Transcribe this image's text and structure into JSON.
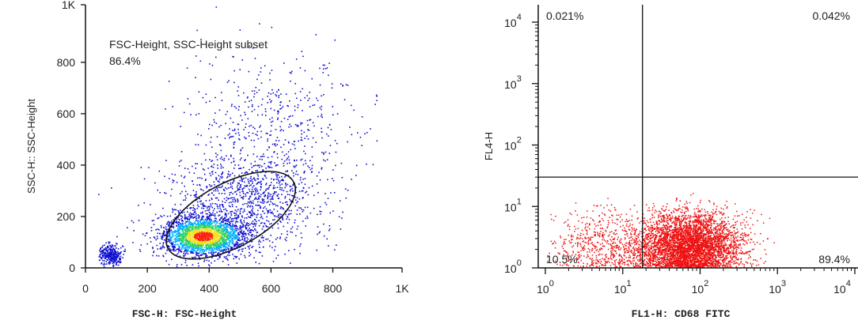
{
  "chart_data": [
    {
      "type": "scatter",
      "xlabel": "FSC-H: FSC-Height",
      "ylabel": "SSC-H:: SSC-Height",
      "xlim": [
        0,
        1024
      ],
      "ylim": [
        0,
        1024
      ],
      "xticks": [
        {
          "value": 0,
          "label": "0"
        },
        {
          "value": 200,
          "label": "200"
        },
        {
          "value": 400,
          "label": "400"
        },
        {
          "value": 600,
          "label": "600"
        },
        {
          "value": 800,
          "label": "800"
        },
        {
          "value": 1024,
          "label": "1K"
        }
      ],
      "yticks": [
        {
          "value": 0,
          "label": "0"
        },
        {
          "value": 200,
          "label": "200"
        },
        {
          "value": 400,
          "label": "400"
        },
        {
          "value": 600,
          "label": "600"
        },
        {
          "value": 800,
          "label": "800"
        },
        {
          "value": 1024,
          "label": "1K"
        }
      ],
      "gate": {
        "shape": "ellipse",
        "label": "FSC-Height, SSC-Height subset",
        "percent": "86.4%",
        "center": [
          470,
          205
        ],
        "radii": [
          230,
          125
        ],
        "rotation_deg": 28
      },
      "density_color_scale": [
        "#1010d0",
        "#00b0ff",
        "#30d060",
        "#f0e020",
        "#ff2010"
      ],
      "population_clusters": [
        {
          "center": [
            380,
            125
          ],
          "spread": [
            70,
            40
          ],
          "fraction": 0.55
        },
        {
          "center": [
            520,
            260
          ],
          "spread": [
            130,
            95
          ],
          "fraction": 0.25
        },
        {
          "center": [
            80,
            55
          ],
          "spread": [
            18,
            20
          ],
          "fraction": 0.08
        },
        {
          "center": [
            600,
            560
          ],
          "spread": [
            140,
            140
          ],
          "fraction": 0.12
        }
      ]
    },
    {
      "type": "scatter",
      "xscale": "log",
      "yscale": "log",
      "xlabel": "FL1-H: CD68 FITC",
      "ylabel": "FL4-H",
      "xlim": [
        1,
        10000
      ],
      "ylim": [
        1,
        10000
      ],
      "xticks": [
        {
          "value": 1,
          "base": "10",
          "exp": "0"
        },
        {
          "value": 10,
          "base": "10",
          "exp": "1"
        },
        {
          "value": 100,
          "base": "10",
          "exp": "2"
        },
        {
          "value": 1000,
          "base": "10",
          "exp": "3"
        },
        {
          "value": 10000,
          "base": "10",
          "exp": "4"
        }
      ],
      "yticks": [
        {
          "value": 1,
          "base": "10",
          "exp": "0"
        },
        {
          "value": 10,
          "base": "10",
          "exp": "1"
        },
        {
          "value": 100,
          "base": "10",
          "exp": "2"
        },
        {
          "value": 1000,
          "base": "10",
          "exp": "3"
        },
        {
          "value": 10000,
          "base": "10",
          "exp": "4"
        }
      ],
      "quadrant_divider": {
        "x": 18,
        "y": 30
      },
      "quadrants": {
        "upper_left": "0.021%",
        "upper_right": "0.042%",
        "lower_left": "10.5%",
        "lower_right": "89.4%"
      },
      "point_color": "#ee1111",
      "population_clusters": [
        {
          "log_center": [
            1.85,
            0.35
          ],
          "log_spread": [
            0.33,
            0.27
          ],
          "fraction": 0.88
        },
        {
          "log_center": [
            0.75,
            0.35
          ],
          "log_spread": [
            0.35,
            0.3
          ],
          "fraction": 0.12
        }
      ]
    }
  ]
}
